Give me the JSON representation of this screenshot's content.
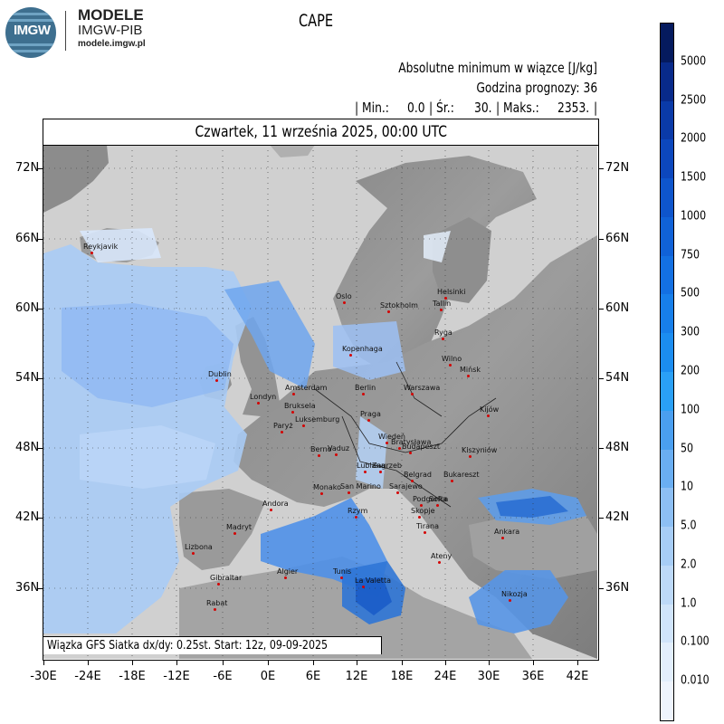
{
  "logo": {
    "text": "IMGW",
    "brand": "MODELE",
    "org": "IMGW-PIB",
    "url": "modele.imgw.pl"
  },
  "title": "CAPE",
  "header": {
    "variable": "Absolutne minimum w wiązce [J/kg]",
    "forecast_hour": "Godzina prognozy: 36",
    "stats": {
      "min_label": "| Min.:",
      "min_value": "0.0",
      "mean_label": "| Śr.:",
      "mean_value": "30.",
      "max_label": "| Maks.:",
      "max_value": "2353.",
      "end": "|"
    }
  },
  "date": "Czwartek, 11 września 2025, 00:00 UTC",
  "footnote": "Wiązka GFS Siatka dx/dy: 0.25st. Start: 12z, 09-09-2025",
  "lat_labels": [
    "72N",
    "66N",
    "60N",
    "54N",
    "48N",
    "42N",
    "36N"
  ],
  "lon_labels": [
    "-30E",
    "-24E",
    "-18E",
    "-12E",
    "-6E",
    "0E",
    "6E",
    "12E",
    "18E",
    "24E",
    "30E",
    "36E",
    "42E"
  ],
  "legend": {
    "labels": [
      "5000",
      "2500",
      "2000",
      "1500",
      "1000",
      "750",
      "500",
      "300",
      "200",
      "100",
      "50",
      "10",
      "5.0",
      "2.0",
      "1.0",
      "0.100",
      "0.010"
    ],
    "colors": [
      "#051a5e",
      "#082a8a",
      "#0a3aa8",
      "#0c47bd",
      "#0e55cc",
      "#1062d8",
      "#1370e2",
      "#177fea",
      "#1b8df0",
      "#2aa0f6",
      "#4a9ff0",
      "#6aaef2",
      "#8dbff4",
      "#a7cdf6",
      "#bdd9f8",
      "#d0e4fa",
      "#e2eefc",
      "#eef4fd"
    ]
  },
  "cities": [
    "Reykjavik",
    "Oslo",
    "Sztokholm",
    "Helsinki",
    "Tallin",
    "Ryga",
    "Kopenhaga",
    "Wilno",
    "Mińsk",
    "Dublin",
    "Londyn",
    "Amsterdam",
    "Berlin",
    "Warszawa",
    "Kijów",
    "Bruksela",
    "Luksemburg",
    "Praga",
    "Paryż",
    "Wiedeń",
    "Bratysława",
    "Budapeszt",
    "Kiszyniów",
    "Berno",
    "Vaduz",
    "Lublana",
    "Zagrzeb",
    "Belgrad",
    "Bukareszt",
    "Monako",
    "San Marino",
    "Sarajewo",
    "Podgorica",
    "Sofia",
    "Andora",
    "Rzym",
    "Skopje",
    "Tirana",
    "Madryt",
    "Ankara",
    "Lizbona",
    "Ateny",
    "Algier",
    "Tunis",
    "La Valetta",
    "Gibraltar",
    "Nikozja",
    "Rabat"
  ]
}
